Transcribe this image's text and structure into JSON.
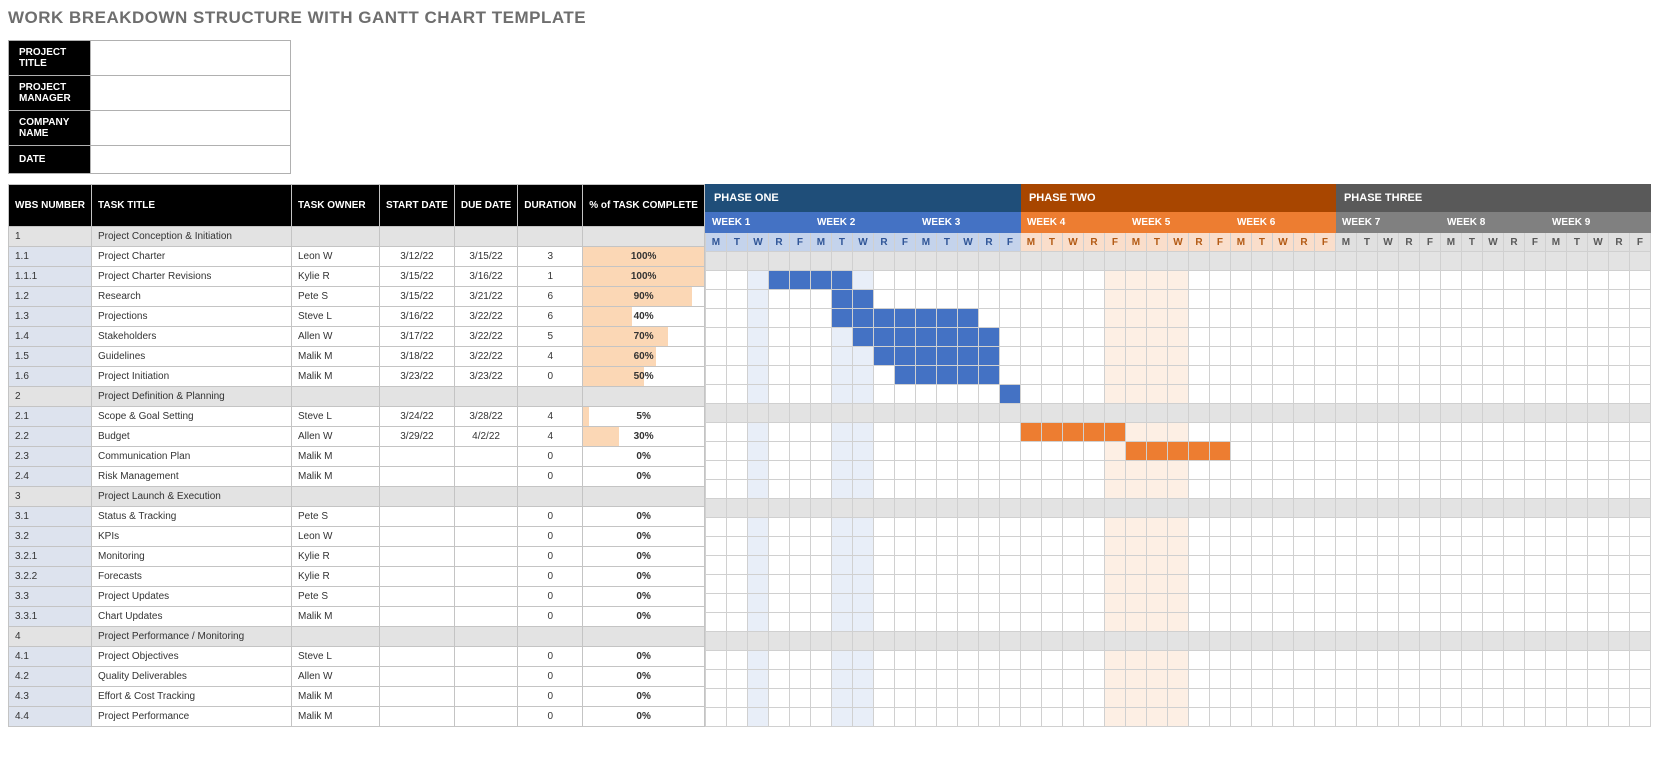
{
  "title": "WORK BREAKDOWN STRUCTURE WITH GANTT CHART TEMPLATE",
  "metaLabels": [
    "PROJECT TITLE",
    "PROJECT MANAGER",
    "COMPANY NAME",
    "DATE"
  ],
  "metaValues": [
    "",
    "",
    "",
    ""
  ],
  "columns": [
    "WBS NUMBER",
    "TASK TITLE",
    "TASK OWNER",
    "START DATE",
    "DUE DATE",
    "DURATION",
    "% of TASK COMPLETE"
  ],
  "colors": {
    "phase1_header": "#1f4e79",
    "phase1_week": "#4472c4",
    "phase1_day_bg": "#c4d3ec",
    "phase1_day_fg": "#2f5597",
    "phase1_body_bg": "#e8eef8",
    "phase1_bar": "#4472c4",
    "phase2_header": "#a84600",
    "phase2_week": "#ed7d31",
    "phase2_day_bg": "#fadecb",
    "phase2_day_fg": "#b35a14",
    "phase2_body_bg": "#fdefe4",
    "phase2_bar": "#ed7d31",
    "phase3_header": "#595959",
    "phase3_week": "#808080",
    "phase3_day_bg": "#e0e0e0",
    "phase3_day_fg": "#595959",
    "phase3_body_bg": "#ffffff",
    "phase3_bar": "#808080",
    "wbs_col_bg": "#dde3ee",
    "section_bg": "#e3e3e3",
    "pct_fill": "#fbd7b5",
    "pct_wbg": "#ffffff"
  },
  "phases": [
    {
      "label": "PHASE ONE",
      "weeks": [
        "WEEK 1",
        "WEEK 2",
        "WEEK 3"
      ]
    },
    {
      "label": "PHASE TWO",
      "weeks": [
        "WEEK 4",
        "WEEK 5",
        "WEEK 6"
      ]
    },
    {
      "label": "PHASE THREE",
      "weeks": [
        "WEEK 7",
        "WEEK 8",
        "WEEK 9"
      ]
    }
  ],
  "days": [
    "M",
    "T",
    "W",
    "R",
    "F"
  ],
  "phase1_shade_cols": [
    3,
    7,
    8
  ],
  "phase2_shade_cols": [
    5,
    6,
    7,
    8
  ],
  "tasks": [
    {
      "wbs": "1",
      "title": "Project Conception & Initiation",
      "owner": "",
      "start": "",
      "due": "",
      "dur": "",
      "pct": "",
      "section": true
    },
    {
      "wbs": "1.1",
      "title": "Project Charter",
      "owner": "Leon W",
      "start": "3/12/22",
      "due": "3/15/22",
      "dur": "3",
      "pct": "100%",
      "bar": {
        "phase": 1,
        "start": 4,
        "len": 4
      }
    },
    {
      "wbs": "1.1.1",
      "title": "Project Charter Revisions",
      "owner": "Kylie R",
      "start": "3/15/22",
      "due": "3/16/22",
      "dur": "1",
      "pct": "100%",
      "bar": {
        "phase": 1,
        "start": 7,
        "len": 2
      }
    },
    {
      "wbs": "1.2",
      "title": "Research",
      "owner": "Pete S",
      "start": "3/15/22",
      "due": "3/21/22",
      "dur": "6",
      "pct": "90%",
      "bar": {
        "phase": 1,
        "start": 7,
        "len": 7
      }
    },
    {
      "wbs": "1.3",
      "title": "Projections",
      "owner": "Steve L",
      "start": "3/16/22",
      "due": "3/22/22",
      "dur": "6",
      "pct": "40%",
      "bar": {
        "phase": 1,
        "start": 8,
        "len": 7
      }
    },
    {
      "wbs": "1.4",
      "title": "Stakeholders",
      "owner": "Allen W",
      "start": "3/17/22",
      "due": "3/22/22",
      "dur": "5",
      "pct": "70%",
      "bar": {
        "phase": 1,
        "start": 9,
        "len": 6
      }
    },
    {
      "wbs": "1.5",
      "title": "Guidelines",
      "owner": "Malik M",
      "start": "3/18/22",
      "due": "3/22/22",
      "dur": "4",
      "pct": "60%",
      "bar": {
        "phase": 1,
        "start": 10,
        "len": 5
      }
    },
    {
      "wbs": "1.6",
      "title": "Project Initiation",
      "owner": "Malik M",
      "start": "3/23/22",
      "due": "3/23/22",
      "dur": "0",
      "pct": "50%",
      "bar": {
        "phase": 1,
        "start": 15,
        "len": 1
      }
    },
    {
      "wbs": "2",
      "title": "Project Definition & Planning",
      "owner": "",
      "start": "",
      "due": "",
      "dur": "",
      "pct": "",
      "section": true
    },
    {
      "wbs": "2.1",
      "title": "Scope & Goal Setting",
      "owner": "Steve L",
      "start": "3/24/22",
      "due": "3/28/22",
      "dur": "4",
      "pct": "5%",
      "bar": {
        "phase": 2,
        "start": 1,
        "len": 5
      }
    },
    {
      "wbs": "2.2",
      "title": "Budget",
      "owner": "Allen W",
      "start": "3/29/22",
      "due": "4/2/22",
      "dur": "4",
      "pct": "30%",
      "bar": {
        "phase": 2,
        "start": 6,
        "len": 5
      }
    },
    {
      "wbs": "2.3",
      "title": "Communication Plan",
      "owner": "Malik M",
      "start": "",
      "due": "",
      "dur": "0",
      "pct": "0%"
    },
    {
      "wbs": "2.4",
      "title": "Risk Management",
      "owner": "Malik M",
      "start": "",
      "due": "",
      "dur": "0",
      "pct": "0%"
    },
    {
      "wbs": "3",
      "title": "Project Launch & Execution",
      "owner": "",
      "start": "",
      "due": "",
      "dur": "",
      "pct": "",
      "section": true
    },
    {
      "wbs": "3.1",
      "title": "Status & Tracking",
      "owner": "Pete S",
      "start": "",
      "due": "",
      "dur": "0",
      "pct": "0%"
    },
    {
      "wbs": "3.2",
      "title": "KPIs",
      "owner": "Leon W",
      "start": "",
      "due": "",
      "dur": "0",
      "pct": "0%"
    },
    {
      "wbs": "3.2.1",
      "title": "Monitoring",
      "owner": "Kylie R",
      "start": "",
      "due": "",
      "dur": "0",
      "pct": "0%"
    },
    {
      "wbs": "3.2.2",
      "title": "Forecasts",
      "owner": "Kylie R",
      "start": "",
      "due": "",
      "dur": "0",
      "pct": "0%"
    },
    {
      "wbs": "3.3",
      "title": "Project Updates",
      "owner": "Pete S",
      "start": "",
      "due": "",
      "dur": "0",
      "pct": "0%"
    },
    {
      "wbs": "3.3.1",
      "title": "Chart Updates",
      "owner": "Malik M",
      "start": "",
      "due": "",
      "dur": "0",
      "pct": "0%"
    },
    {
      "wbs": "4",
      "title": "Project Performance / Monitoring",
      "owner": "",
      "start": "",
      "due": "",
      "dur": "",
      "pct": "",
      "section": true
    },
    {
      "wbs": "4.1",
      "title": "Project Objectives",
      "owner": "Steve L",
      "start": "",
      "due": "",
      "dur": "0",
      "pct": "0%"
    },
    {
      "wbs": "4.2",
      "title": "Quality Deliverables",
      "owner": "Allen W",
      "start": "",
      "due": "",
      "dur": "0",
      "pct": "0%"
    },
    {
      "wbs": "4.3",
      "title": "Effort & Cost Tracking",
      "owner": "Malik M",
      "start": "",
      "due": "",
      "dur": "0",
      "pct": "0%"
    },
    {
      "wbs": "4.4",
      "title": "Project Performance",
      "owner": "Malik M",
      "start": "",
      "due": "",
      "dur": "0",
      "pct": "0%"
    }
  ]
}
